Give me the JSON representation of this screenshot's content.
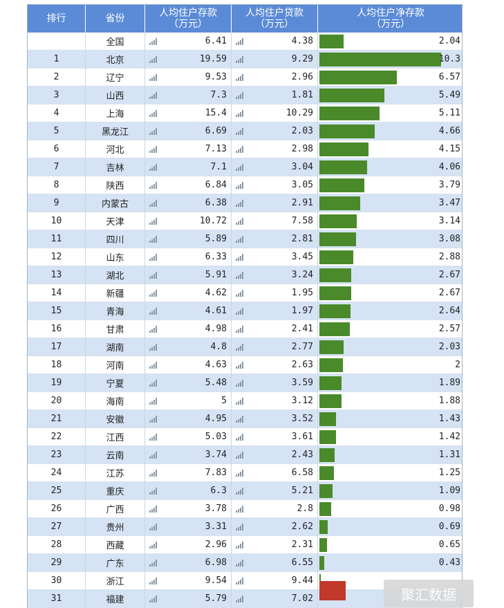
{
  "table": {
    "headers": {
      "rank": "排行",
      "province": "省份",
      "deposit": "人均住户存款",
      "deposit_unit": "（万元）",
      "loan": "人均住户贷款",
      "loan_unit": "（万元）",
      "net": "人均住户净存款",
      "net_unit": "（万元）"
    },
    "colors": {
      "header_bg": "#5b8bd6",
      "bar": "#4a8a2a",
      "stripe": "#d5e3f4",
      "red_block": "#c0392b"
    },
    "watermark": "聚汇数据"
  },
  "chart_data": {
    "type": "table",
    "columns": [
      "排行",
      "省份",
      "人均住户存款（万元）",
      "人均住户贷款（万元）",
      "人均住户净存款（万元）"
    ],
    "net_bar_max": 10.3,
    "rows": [
      {
        "rank": "",
        "province": "全国",
        "deposit": "6.41",
        "loan": "4.38",
        "net": "2.04",
        "net_value": 2.04
      },
      {
        "rank": "1",
        "province": "北京",
        "deposit": "19.59",
        "loan": "9.29",
        "net": "10.3",
        "net_value": 10.3
      },
      {
        "rank": "2",
        "province": "辽宁",
        "deposit": "9.53",
        "loan": "2.96",
        "net": "6.57",
        "net_value": 6.57
      },
      {
        "rank": "3",
        "province": "山西",
        "deposit": "7.3",
        "loan": "1.81",
        "net": "5.49",
        "net_value": 5.49
      },
      {
        "rank": "4",
        "province": "上海",
        "deposit": "15.4",
        "loan": "10.29",
        "net": "5.11",
        "net_value": 5.11
      },
      {
        "rank": "5",
        "province": "黑龙江",
        "deposit": "6.69",
        "loan": "2.03",
        "net": "4.66",
        "net_value": 4.66
      },
      {
        "rank": "6",
        "province": "河北",
        "deposit": "7.13",
        "loan": "2.98",
        "net": "4.15",
        "net_value": 4.15
      },
      {
        "rank": "7",
        "province": "吉林",
        "deposit": "7.1",
        "loan": "3.04",
        "net": "4.06",
        "net_value": 4.06
      },
      {
        "rank": "8",
        "province": "陕西",
        "deposit": "6.84",
        "loan": "3.05",
        "net": "3.79",
        "net_value": 3.79
      },
      {
        "rank": "9",
        "province": "内蒙古",
        "deposit": "6.38",
        "loan": "2.91",
        "net": "3.47",
        "net_value": 3.47
      },
      {
        "rank": "10",
        "province": "天津",
        "deposit": "10.72",
        "loan": "7.58",
        "net": "3.14",
        "net_value": 3.14
      },
      {
        "rank": "11",
        "province": "四川",
        "deposit": "5.89",
        "loan": "2.81",
        "net": "3.08",
        "net_value": 3.08
      },
      {
        "rank": "12",
        "province": "山东",
        "deposit": "6.33",
        "loan": "3.45",
        "net": "2.88",
        "net_value": 2.88
      },
      {
        "rank": "13",
        "province": "湖北",
        "deposit": "5.91",
        "loan": "3.24",
        "net": "2.67",
        "net_value": 2.67
      },
      {
        "rank": "14",
        "province": "新疆",
        "deposit": "4.62",
        "loan": "1.95",
        "net": "2.67",
        "net_value": 2.67
      },
      {
        "rank": "15",
        "province": "青海",
        "deposit": "4.61",
        "loan": "1.97",
        "net": "2.64",
        "net_value": 2.64
      },
      {
        "rank": "16",
        "province": "甘肃",
        "deposit": "4.98",
        "loan": "2.41",
        "net": "2.57",
        "net_value": 2.57
      },
      {
        "rank": "17",
        "province": "湖南",
        "deposit": "4.8",
        "loan": "2.77",
        "net": "2.03",
        "net_value": 2.03
      },
      {
        "rank": "18",
        "province": "河南",
        "deposit": "4.63",
        "loan": "2.63",
        "net": "2",
        "net_value": 2
      },
      {
        "rank": "19",
        "province": "宁夏",
        "deposit": "5.48",
        "loan": "3.59",
        "net": "1.89",
        "net_value": 1.89
      },
      {
        "rank": "20",
        "province": "海南",
        "deposit": "5",
        "loan": "3.12",
        "net": "1.88",
        "net_value": 1.88
      },
      {
        "rank": "21",
        "province": "安徽",
        "deposit": "4.95",
        "loan": "3.52",
        "net": "1.43",
        "net_value": 1.43
      },
      {
        "rank": "22",
        "province": "江西",
        "deposit": "5.03",
        "loan": "3.61",
        "net": "1.42",
        "net_value": 1.42
      },
      {
        "rank": "23",
        "province": "云南",
        "deposit": "3.74",
        "loan": "2.43",
        "net": "1.31",
        "net_value": 1.31
      },
      {
        "rank": "24",
        "province": "江苏",
        "deposit": "7.83",
        "loan": "6.58",
        "net": "1.25",
        "net_value": 1.25
      },
      {
        "rank": "25",
        "province": "重庆",
        "deposit": "6.3",
        "loan": "5.21",
        "net": "1.09",
        "net_value": 1.09
      },
      {
        "rank": "26",
        "province": "广西",
        "deposit": "3.78",
        "loan": "2.8",
        "net": "0.98",
        "net_value": 0.98
      },
      {
        "rank": "27",
        "province": "贵州",
        "deposit": "3.31",
        "loan": "2.62",
        "net": "0.69",
        "net_value": 0.69
      },
      {
        "rank": "28",
        "province": "西藏",
        "deposit": "2.96",
        "loan": "2.31",
        "net": "0.65",
        "net_value": 0.65
      },
      {
        "rank": "29",
        "province": "广东",
        "deposit": "6.98",
        "loan": "6.55",
        "net": "0.43",
        "net_value": 0.43
      },
      {
        "rank": "30",
        "province": "浙江",
        "deposit": "9.54",
        "loan": "9.44",
        "net": "",
        "net_value": 0.1
      },
      {
        "rank": "31",
        "province": "福建",
        "deposit": "5.79",
        "loan": "7.02",
        "net": "",
        "net_value": -1.23
      }
    ]
  }
}
